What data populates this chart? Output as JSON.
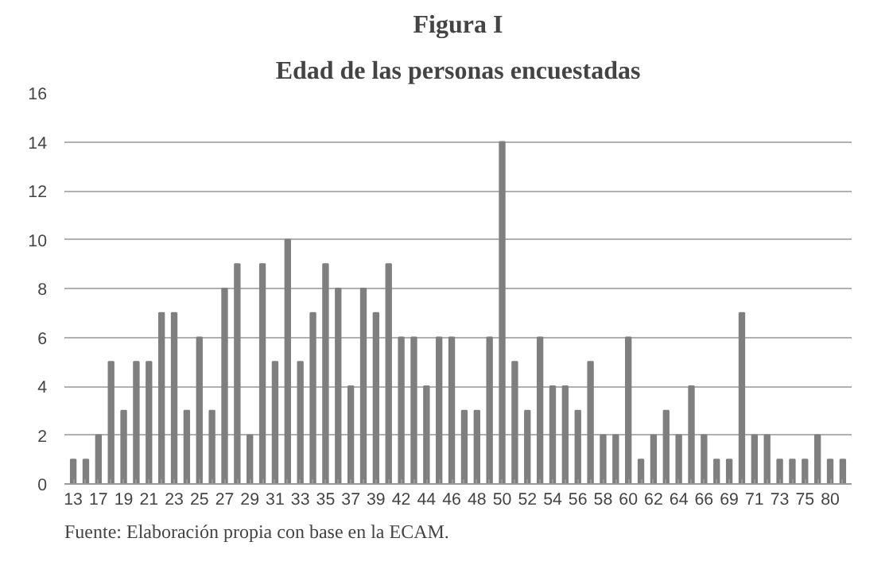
{
  "chart_data": {
    "type": "bar",
    "title": "Figura I",
    "subtitle": "Edad de las personas encuestadas",
    "categories": [
      "13",
      null,
      "17",
      null,
      "19",
      null,
      "21",
      null,
      "23",
      null,
      "25",
      null,
      "27",
      null,
      "29",
      null,
      "31",
      null,
      "33",
      null,
      "35",
      null,
      "37",
      null,
      "39",
      null,
      "42",
      null,
      "44",
      null,
      "46",
      null,
      "48",
      null,
      "50",
      null,
      "52",
      null,
      "54",
      null,
      "56",
      null,
      "58",
      null,
      "60",
      null,
      "62",
      null,
      "64",
      null,
      "66",
      null,
      "69",
      null,
      "71",
      null,
      "73",
      null,
      "75",
      null,
      "80",
      null
    ],
    "values": [
      1,
      1,
      2,
      5,
      3,
      5,
      5,
      7,
      7,
      3,
      6,
      3,
      8,
      9,
      2,
      9,
      5,
      10,
      5,
      7,
      9,
      8,
      4,
      8,
      7,
      9,
      6,
      6,
      4,
      6,
      6,
      3,
      3,
      6,
      14,
      5,
      3,
      6,
      4,
      4,
      3,
      5,
      2,
      2,
      6,
      1,
      2,
      3,
      2,
      4,
      2,
      1,
      1,
      7,
      2,
      2,
      1,
      1,
      1,
      2,
      1,
      1
    ],
    "color": "#7f7f7f",
    "ylim": [
      0,
      16
    ],
    "yticks": [
      0,
      2,
      4,
      6,
      8,
      10,
      12,
      14,
      16
    ],
    "grid": "y",
    "annotations": [
      "Fuente: Elaboración propia con base en la ECAM."
    ]
  }
}
